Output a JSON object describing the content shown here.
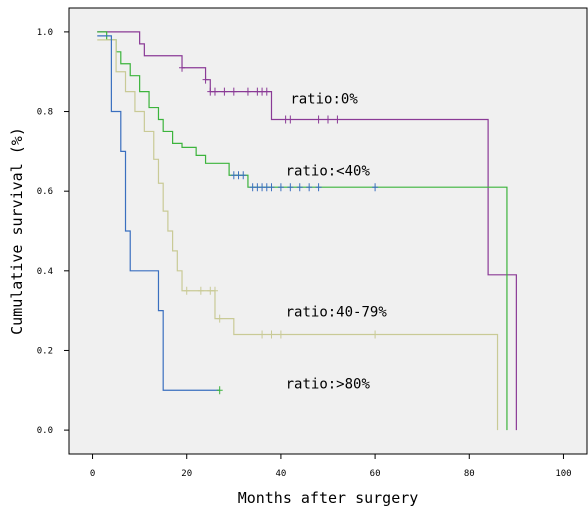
{
  "chart_data": {
    "type": "line",
    "subtype": "kaplan-meier-step",
    "xlabel": "Months after surgery",
    "ylabel": "Cumulative survival (%)",
    "xlim": [
      -5,
      105
    ],
    "ylim": [
      -0.06,
      1.06
    ],
    "xticks": [
      0,
      20,
      40,
      60,
      80,
      100
    ],
    "yticks": [
      0.0,
      0.2,
      0.4,
      0.6,
      0.8,
      1.0
    ],
    "xtick_labels": [
      "0",
      "20",
      "40",
      "60",
      "80",
      "100"
    ],
    "ytick_labels": [
      "0.0",
      "0.2",
      "0.4",
      "0.6",
      "0.8",
      "1.0"
    ],
    "grid": false,
    "background": "#f0f0f0",
    "series": [
      {
        "label": "ratio:0%",
        "color": "#8a3a96",
        "steps": [
          [
            1,
            1.0
          ],
          [
            10,
            0.97
          ],
          [
            11,
            0.94
          ],
          [
            19,
            0.91
          ],
          [
            24,
            0.88
          ],
          [
            25,
            0.85
          ],
          [
            38,
            0.78
          ],
          [
            84,
            0.39
          ],
          [
            90,
            0.0
          ]
        ],
        "end_x": 90,
        "censored": [
          [
            19,
            0.91
          ],
          [
            24,
            0.88
          ],
          [
            25,
            0.85
          ],
          [
            26,
            0.85
          ],
          [
            28,
            0.85
          ],
          [
            30,
            0.85
          ],
          [
            33,
            0.85
          ],
          [
            35,
            0.85
          ],
          [
            36,
            0.85
          ],
          [
            37,
            0.85
          ],
          [
            41,
            0.78
          ],
          [
            42,
            0.78
          ],
          [
            48,
            0.78
          ],
          [
            50,
            0.78
          ],
          [
            52,
            0.78
          ]
        ]
      },
      {
        "label": "ratio:<40%",
        "color": "#3cb43c",
        "steps": [
          [
            1,
            1.0
          ],
          [
            3,
            0.98
          ],
          [
            5,
            0.95
          ],
          [
            6,
            0.92
          ],
          [
            8,
            0.89
          ],
          [
            10,
            0.85
          ],
          [
            12,
            0.81
          ],
          [
            14,
            0.78
          ],
          [
            15,
            0.75
          ],
          [
            17,
            0.72
          ],
          [
            19,
            0.71
          ],
          [
            22,
            0.69
          ],
          [
            24,
            0.67
          ],
          [
            29,
            0.64
          ],
          [
            33,
            0.61
          ],
          [
            88,
            0.0
          ]
        ],
        "end_x": 88,
        "censored": [
          [
            30,
            0.64
          ],
          [
            31,
            0.64
          ],
          [
            32,
            0.64
          ],
          [
            34,
            0.61
          ],
          [
            35,
            0.61
          ],
          [
            36,
            0.61
          ],
          [
            37,
            0.61
          ],
          [
            38,
            0.61
          ],
          [
            40,
            0.61
          ],
          [
            42,
            0.61
          ],
          [
            44,
            0.61
          ],
          [
            46,
            0.61
          ],
          [
            48,
            0.61
          ],
          [
            60,
            0.61
          ]
        ],
        "censored_color": "#3a6fbf"
      },
      {
        "label": "ratio:40-79%",
        "color": "#c9ca96",
        "steps": [
          [
            1,
            0.98
          ],
          [
            5,
            0.9
          ],
          [
            7,
            0.85
          ],
          [
            9,
            0.8
          ],
          [
            11,
            0.75
          ],
          [
            13,
            0.68
          ],
          [
            14,
            0.62
          ],
          [
            15,
            0.55
          ],
          [
            16,
            0.5
          ],
          [
            17,
            0.45
          ],
          [
            18,
            0.4
          ],
          [
            19,
            0.35
          ],
          [
            26,
            0.28
          ],
          [
            30,
            0.24
          ],
          [
            86,
            0.0
          ]
        ],
        "end_x": 86,
        "censored": [
          [
            20,
            0.35
          ],
          [
            23,
            0.35
          ],
          [
            25,
            0.35
          ],
          [
            26,
            0.35
          ],
          [
            27,
            0.28
          ],
          [
            36,
            0.24
          ],
          [
            38,
            0.24
          ],
          [
            40,
            0.24
          ],
          [
            60,
            0.24
          ]
        ]
      },
      {
        "label": "ratio:>80%",
        "color": "#3a6fbf",
        "steps": [
          [
            1,
            0.99
          ],
          [
            4,
            0.8
          ],
          [
            6,
            0.7
          ],
          [
            7,
            0.5
          ],
          [
            8,
            0.4
          ],
          [
            14,
            0.3
          ],
          [
            15,
            0.1
          ]
        ],
        "end_x": 27,
        "censored": [
          [
            27,
            0.1
          ]
        ],
        "censored_color": "#3cb43c"
      }
    ],
    "annotations": [
      {
        "text": "ratio:0%",
        "x": 42,
        "y": 0.82
      },
      {
        "text": "ratio:<40%",
        "x": 41,
        "y": 0.64
      },
      {
        "text": "ratio:40-79%",
        "x": 41,
        "y": 0.285
      },
      {
        "text": "ratio:>80%",
        "x": 41,
        "y": 0.105
      }
    ]
  }
}
